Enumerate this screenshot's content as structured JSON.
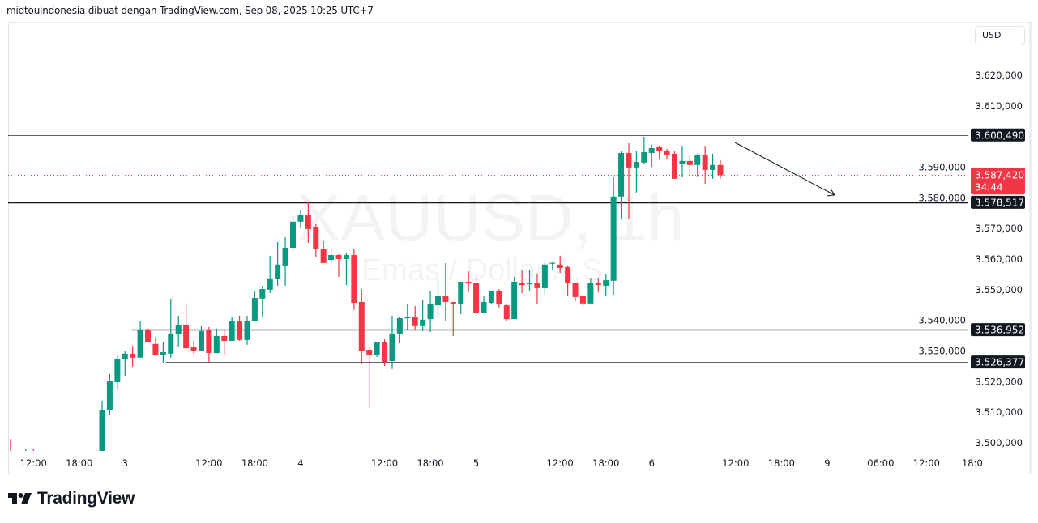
{
  "header": {
    "attribution": "midtouindonesia dibuat dengan TradingView.com, Sep 08, 2025 10:25 UTC+7"
  },
  "currency_button": "USD",
  "brand": "TradingView",
  "colors": {
    "up": "#089981",
    "down": "#F23645",
    "line": "#131722",
    "level": "#5d606b"
  },
  "chart_data": {
    "type": "candlestick",
    "symbol_watermark": "XAUUSD, 1h",
    "description_watermark": "Emas / Dollar A.S.",
    "ylim": [
      3496,
      3630
    ],
    "grid": false,
    "y_ticks": [
      {
        "value": 3620,
        "label": "3.620,000"
      },
      {
        "value": 3610,
        "label": "3.610,000"
      },
      {
        "value": 3590,
        "label": "3.590,000"
      },
      {
        "value": 3580,
        "label": "3.580,000"
      },
      {
        "value": 3570,
        "label": "3.570,000"
      },
      {
        "value": 3560,
        "label": "3.560,000"
      },
      {
        "value": 3550,
        "label": "3.550,000"
      },
      {
        "value": 3540,
        "label": "3.540,000"
      },
      {
        "value": 3530,
        "label": "3.530,000"
      },
      {
        "value": 3520,
        "label": "3.520,000"
      },
      {
        "value": 3510,
        "label": "3.510,000"
      },
      {
        "value": 3500,
        "label": "3.500,000"
      }
    ],
    "x_ticks": [
      {
        "time": "09-02 12:00",
        "label": "12:00"
      },
      {
        "time": "09-02 18:00",
        "label": "18:00"
      },
      {
        "time": "09-03 00:00",
        "label": "3"
      },
      {
        "time": "09-03 12:00",
        "label": "12:00"
      },
      {
        "time": "09-03 18:00",
        "label": "18:00"
      },
      {
        "time": "09-04 00:00",
        "label": "4"
      },
      {
        "time": "09-04 12:00",
        "label": "12:00"
      },
      {
        "time": "09-04 18:00",
        "label": "18:00"
      },
      {
        "time": "09-05 00:00",
        "label": "5"
      },
      {
        "time": "09-05 12:00",
        "label": "12:00"
      },
      {
        "time": "09-05 18:00",
        "label": "18:00"
      },
      {
        "time": "09-06 00:00",
        "label": "6"
      },
      {
        "time": "09-08 12:00",
        "label": "12:00"
      },
      {
        "time": "09-08 18:00",
        "label": "18:00"
      },
      {
        "time": "09-09 00:00",
        "label": "9"
      },
      {
        "time": "09-09 06:00",
        "label": "06:00"
      },
      {
        "time": "09-09 12:00",
        "label": "12:00"
      },
      {
        "time": "09-09 18:00",
        "label": "18:0"
      }
    ],
    "levels": [
      {
        "value": 3600.49,
        "label": "3.600,490"
      },
      {
        "value": 3578.517,
        "label": "3.578,517"
      },
      {
        "value": 3536.952,
        "label": "3.536,952"
      },
      {
        "value": 3526.377,
        "label": "3.526,377"
      }
    ],
    "last_price": {
      "value": 3587.42,
      "label": "3.587,420",
      "countdown": "34:44"
    },
    "candles_columns": [
      "time",
      "open",
      "high",
      "low",
      "close"
    ],
    "candles": [
      [
        "09-02 09:00",
        3494.0,
        3501.3,
        3490.0,
        3492.0
      ],
      [
        "09-02 11:00",
        3493.0,
        3497.9,
        3490.0,
        3495.0
      ],
      [
        "09-02 12:00",
        3495.0,
        3497.9,
        3490.0,
        3493.0
      ],
      [
        "09-02 21:00",
        3497.1,
        3513.8,
        3496.6,
        3510.8
      ],
      [
        "09-02 22:00",
        3510.6,
        3522.5,
        3509.0,
        3520.1
      ],
      [
        "09-02 23:00",
        3519.8,
        3528.6,
        3517.7,
        3527.5
      ],
      [
        "09-03 00:00",
        3527.2,
        3529.9,
        3521.7,
        3529.1
      ],
      [
        "09-03 01:00",
        3529.1,
        3531.7,
        3524.9,
        3527.8
      ],
      [
        "09-03 02:00",
        3527.8,
        3539.7,
        3527.8,
        3536.8
      ],
      [
        "09-03 03:00",
        3536.8,
        3537.3,
        3532.8,
        3532.8
      ],
      [
        "09-03 05:00",
        3532.3,
        3534.6,
        3528.6,
        3528.6
      ],
      [
        "09-03 06:00",
        3528.6,
        3532.8,
        3526.2,
        3529.6
      ],
      [
        "09-03 07:00",
        3529.1,
        3547.1,
        3527.8,
        3535.7
      ],
      [
        "09-03 08:00",
        3535.4,
        3541.5,
        3531.5,
        3538.6
      ],
      [
        "09-03 09:00",
        3538.6,
        3545.7,
        3530.7,
        3530.9
      ],
      [
        "09-03 10:00",
        3531.2,
        3533.3,
        3529.1,
        3530.1
      ],
      [
        "09-03 11:00",
        3530.1,
        3538.1,
        3530.1,
        3536.5
      ],
      [
        "09-03 12:00",
        3536.8,
        3537.8,
        3526.4,
        3529.3
      ],
      [
        "09-03 13:00",
        3529.3,
        3537.3,
        3529.3,
        3534.9
      ],
      [
        "09-03 14:00",
        3534.9,
        3536.8,
        3528.8,
        3533.3
      ],
      [
        "09-03 15:00",
        3533.3,
        3541.2,
        3533.3,
        3539.7
      ],
      [
        "09-03 16:00",
        3539.7,
        3541.5,
        3533.3,
        3533.6
      ],
      [
        "09-03 17:00",
        3533.6,
        3541.5,
        3532.0,
        3539.9
      ],
      [
        "09-03 18:00",
        3539.9,
        3549.4,
        3539.9,
        3547.3
      ],
      [
        "09-03 19:00",
        3547.1,
        3551.3,
        3541.0,
        3550.2
      ],
      [
        "09-03 20:00",
        3550.0,
        3561.1,
        3548.9,
        3553.7
      ],
      [
        "09-03 21:00",
        3553.4,
        3565.6,
        3551.3,
        3558.2
      ],
      [
        "09-03 22:00",
        3557.9,
        3567.1,
        3551.3,
        3563.7
      ],
      [
        "09-03 23:00",
        3563.7,
        3574.3,
        3562.1,
        3572.2
      ],
      [
        "09-04 00:00",
        3572.2,
        3575.9,
        3570.1,
        3574.3
      ],
      [
        "09-04 01:00",
        3574.3,
        3578.5,
        3565.3,
        3569.8
      ],
      [
        "09-04 02:00",
        3570.3,
        3571.4,
        3560.8,
        3563.2
      ],
      [
        "09-04 03:00",
        3563.4,
        3565.8,
        3558.7,
        3558.7
      ],
      [
        "09-04 05:00",
        3559.7,
        3564.0,
        3558.7,
        3561.3
      ],
      [
        "09-04 06:00",
        3561.3,
        3561.6,
        3554.2,
        3560.0
      ],
      [
        "09-04 07:00",
        3560.0,
        3562.1,
        3551.5,
        3561.3
      ],
      [
        "09-04 08:00",
        3561.3,
        3563.2,
        3543.4,
        3545.7
      ],
      [
        "09-04 09:00",
        3546.0,
        3550.2,
        3525.9,
        3530.1
      ],
      [
        "09-04 10:00",
        3530.4,
        3531.5,
        3511.4,
        3528.6
      ],
      [
        "09-04 11:00",
        3528.6,
        3532.8,
        3528.0,
        3532.8
      ],
      [
        "09-04 12:00",
        3532.8,
        3533.8,
        3525.1,
        3526.4
      ],
      [
        "09-04 13:00",
        3526.7,
        3541.5,
        3524.1,
        3535.7
      ],
      [
        "09-04 14:00",
        3535.7,
        3541.0,
        3532.5,
        3540.7
      ],
      [
        "09-04 15:00",
        3540.7,
        3545.2,
        3536.8,
        3541.0
      ],
      [
        "09-04 16:00",
        3541.0,
        3544.7,
        3536.8,
        3538.1
      ],
      [
        "09-04 17:00",
        3538.1,
        3546.8,
        3536.5,
        3540.2
      ],
      [
        "09-04 18:00",
        3540.4,
        3549.7,
        3536.2,
        3545.2
      ],
      [
        "09-04 19:00",
        3544.9,
        3552.9,
        3541.0,
        3548.1
      ],
      [
        "09-04 20:00",
        3548.1,
        3558.7,
        3539.7,
        3546.0
      ],
      [
        "09-04 21:00",
        3546.0,
        3546.0,
        3534.9,
        3545.2
      ],
      [
        "09-04 22:00",
        3545.2,
        3552.6,
        3542.0,
        3552.6
      ],
      [
        "09-04 23:00",
        3552.6,
        3556.0,
        3549.2,
        3552.1
      ],
      [
        "09-05 00:00",
        3552.3,
        3555.3,
        3542.3,
        3542.3
      ],
      [
        "09-05 01:00",
        3542.3,
        3548.1,
        3542.3,
        3546.0
      ],
      [
        "09-05 02:00",
        3545.7,
        3549.7,
        3545.2,
        3549.7
      ],
      [
        "09-05 03:00",
        3549.7,
        3550.2,
        3544.2,
        3545.2
      ],
      [
        "09-05 05:00",
        3544.9,
        3545.2,
        3539.7,
        3540.4
      ],
      [
        "09-05 06:00",
        3540.4,
        3554.2,
        3540.4,
        3552.6
      ],
      [
        "09-05 07:00",
        3552.3,
        3556.6,
        3548.9,
        3551.5
      ],
      [
        "09-05 08:00",
        3551.8,
        3556.3,
        3549.7,
        3552.1
      ],
      [
        "09-05 09:00",
        3552.1,
        3555.3,
        3545.5,
        3550.5
      ],
      [
        "09-05 10:00",
        3550.5,
        3559.0,
        3548.4,
        3558.2
      ],
      [
        "09-05 11:00",
        3558.5,
        3559.0,
        3556.3,
        3558.8
      ],
      [
        "09-05 12:00",
        3558.2,
        3561.1,
        3555.5,
        3557.1
      ],
      [
        "09-05 13:00",
        3557.4,
        3557.9,
        3547.9,
        3552.1
      ],
      [
        "09-05 14:00",
        3552.3,
        3552.3,
        3546.3,
        3547.6
      ],
      [
        "09-05 15:00",
        3547.9,
        3547.9,
        3544.4,
        3545.5
      ],
      [
        "09-05 16:00",
        3545.5,
        3553.9,
        3545.5,
        3552.1
      ],
      [
        "09-05 17:00",
        3552.1,
        3553.9,
        3549.2,
        3551.5
      ],
      [
        "09-05 18:00",
        3551.3,
        3555.0,
        3547.9,
        3553.1
      ],
      [
        "09-05 19:00",
        3552.9,
        3586.7,
        3548.4,
        3580.4
      ],
      [
        "09-05 20:00",
        3580.4,
        3595.2,
        3573.0,
        3594.6
      ],
      [
        "09-05 21:00",
        3594.6,
        3597.8,
        3573.0,
        3589.9
      ],
      [
        "09-05 22:00",
        3589.9,
        3595.4,
        3581.7,
        3591.7
      ],
      [
        "09-05 23:00",
        3591.5,
        3599.9,
        3591.2,
        3594.9
      ],
      [
        "09-06 00:00",
        3594.6,
        3597.3,
        3590.1,
        3596.2
      ],
      [
        "09-06 01:00",
        3596.5,
        3597.0,
        3592.5,
        3595.2
      ],
      [
        "09-06 02:00",
        3595.4,
        3596.0,
        3592.5,
        3594.1
      ],
      [
        "09-06 03:00",
        3594.4,
        3595.2,
        3586.2,
        3586.2
      ],
      [
        "09-08 05:00",
        3591.2,
        3597.0,
        3586.7,
        3592.0
      ],
      [
        "09-08 06:00",
        3592.0,
        3593.8,
        3587.5,
        3590.7
      ],
      [
        "09-08 07:00",
        3590.7,
        3594.4,
        3586.7,
        3594.1
      ],
      [
        "09-08 08:00",
        3594.1,
        3597.0,
        3584.6,
        3589.1
      ],
      [
        "09-08 09:00",
        3589.1,
        3594.4,
        3586.2,
        3590.7
      ],
      [
        "09-08 10:00",
        3590.7,
        3592.3,
        3586.2,
        3587.42
      ]
    ]
  }
}
